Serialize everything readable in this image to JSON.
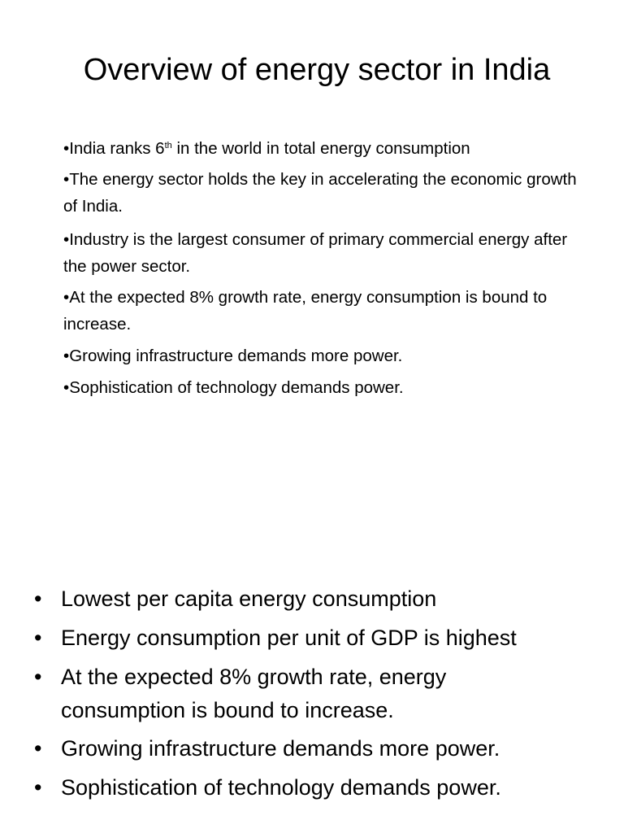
{
  "title": "Overview of energy sector in India",
  "top_points": [
    {
      "before": "India ranks 6",
      "sup": "th",
      "after": " in the world in total energy consumption"
    },
    {
      "text": "The energy sector holds the key in accelerating the economic growth of India."
    },
    {
      "text": "Industry is the largest consumer of primary commercial energy after the power sector."
    },
    {
      "text": "At the expected 8% growth rate, energy consumption is bound to increase."
    },
    {
      "text": "Growing infrastructure demands more power."
    },
    {
      "text": "Sophistication of technology demands power."
    }
  ],
  "bottom_points": [
    "Lowest per capita energy consumption",
    "Energy consumption per unit of GDP is highest",
    "At the expected 8% growth rate, energy consumption is bound to increase.",
    "Growing infrastructure demands more power.",
    "Sophistication of technology demands power."
  ]
}
